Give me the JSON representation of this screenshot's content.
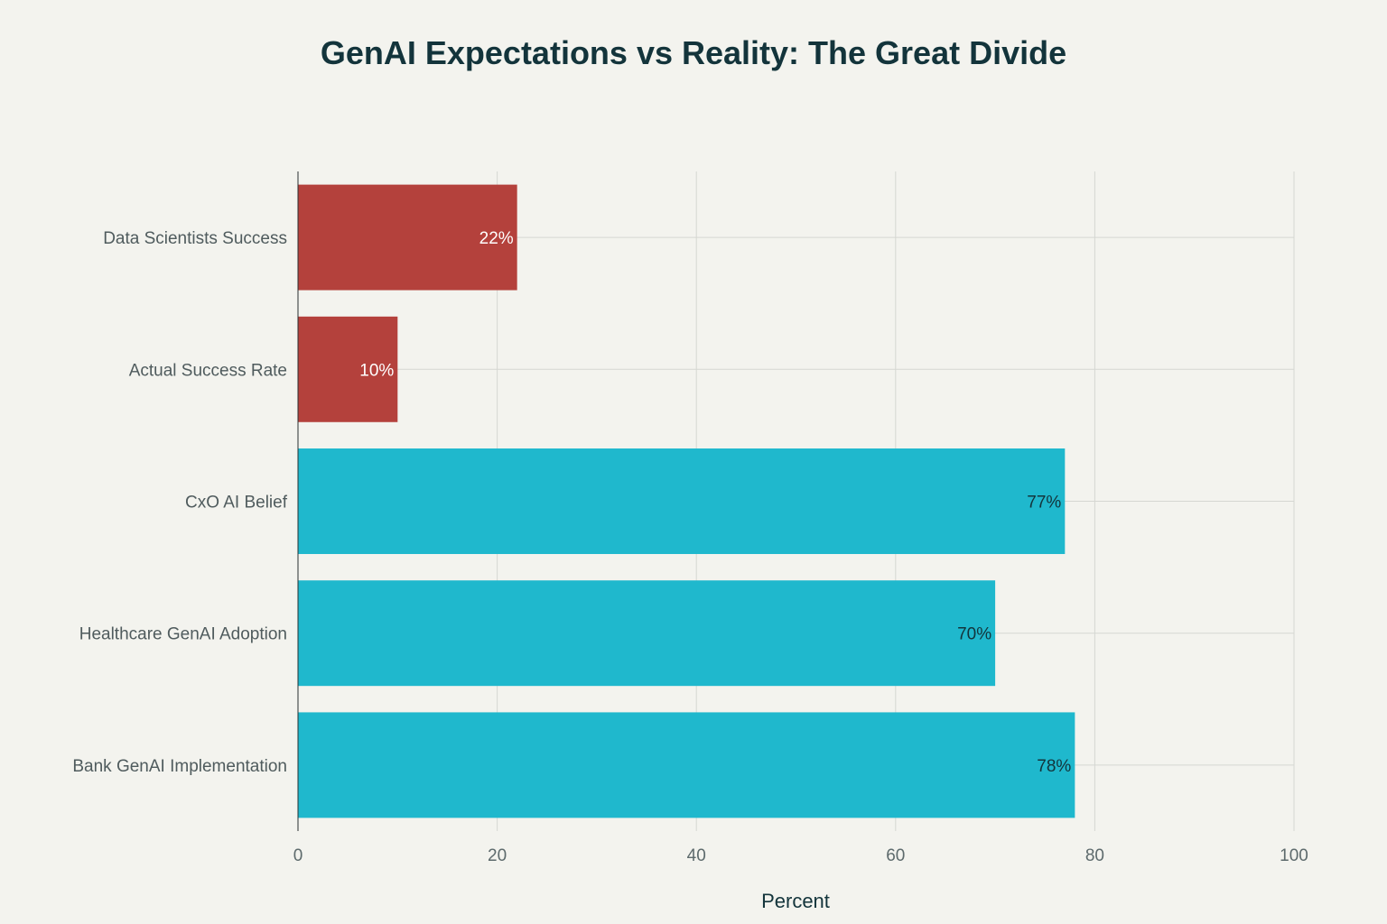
{
  "chart_data": {
    "type": "bar",
    "orientation": "horizontal",
    "title": "GenAI Expectations vs Reality: The Great Divide",
    "xlabel": "Percent",
    "ylabel": "",
    "xlim": [
      0,
      100
    ],
    "xticks": [
      0,
      20,
      40,
      60,
      80,
      100
    ],
    "grid": true,
    "categories": [
      "Data Scientists Success",
      "Actual Success Rate",
      "CxO AI Belief",
      "Healthcare GenAI Adoption",
      "Bank GenAI Implementation"
    ],
    "values": [
      22,
      10,
      77,
      70,
      78
    ],
    "data_labels": [
      "22%",
      "10%",
      "77%",
      "70%",
      "78%"
    ],
    "bar_colors": [
      "#b4413c",
      "#b4413c",
      "#1fb8cd",
      "#1fb8cd",
      "#1fb8cd"
    ],
    "label_colors": [
      "#ffffff",
      "#ffffff",
      "#13343b",
      "#13343b",
      "#13343b"
    ]
  }
}
